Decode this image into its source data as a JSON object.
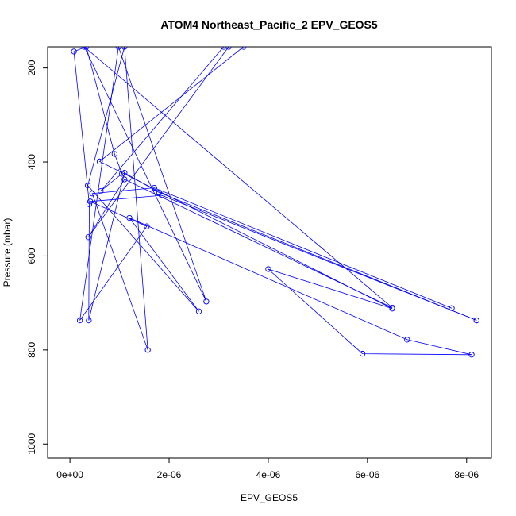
{
  "chart_data": {
    "type": "line",
    "title": "ATOM4 Northeast_Pacific_2 EPV_GEOS5",
    "xlabel": "EPV_GEOS5",
    "ylabel": "Pressure (mbar)",
    "xlim": [
      -4.5e-07,
      8.5e-06
    ],
    "ylim": [
      1030,
      155
    ],
    "y_reversed": true,
    "x_ticks": [
      0,
      2e-06,
      4e-06,
      6e-06,
      8e-06
    ],
    "x_tick_labels": [
      "0e+00",
      "2e-06",
      "4e-06",
      "6e-06",
      "8e-06"
    ],
    "y_ticks": [
      200,
      400,
      600,
      800,
      1000
    ],
    "y_tick_labels": [
      "200",
      "400",
      "600",
      "800",
      "1000"
    ],
    "series_color": "#0000ff",
    "series": [
      {
        "x": [
          8.2e-06,
          1.85e-06,
          4.1e-07,
          1.55e-06,
          2e-07,
          9.8e-07,
          2.75e-06,
          2.9e-07,
          6.5e-06,
          1.1e-06,
          3.7e-07,
          3.2e-06
        ],
        "y": [
          737,
          471,
          484,
          537,
          737,
          155,
          697,
          155,
          710,
          437,
          560,
          155
        ]
      },
      {
        "x": [
          7.7e-06,
          1.7e-06,
          4.5e-07,
          1.57e-06,
          1.1e-06,
          3.6e-07,
          2.6e-06,
          1.2e-06,
          6.8e-06,
          8.1e-06,
          5.9e-06,
          4e-06,
          6.5e-06,
          6e-07,
          3.5e-06
        ],
        "y": [
          711,
          455,
          467,
          800,
          155,
          450,
          718,
          519,
          778,
          810,
          808,
          628,
          712,
          399,
          155
        ]
      },
      {
        "x": [
          8.2e-06,
          1.8e-06,
          1.1e-06,
          3.8e-07,
          3.9e-07,
          8e-08,
          3.3e-07,
          9e-07,
          1.05e-06,
          6.2e-07,
          3.1e-06
        ],
        "y": [
          737,
          465,
          423,
          737,
          490,
          165,
          155,
          383,
          425,
          462,
          155
        ]
      }
    ]
  }
}
